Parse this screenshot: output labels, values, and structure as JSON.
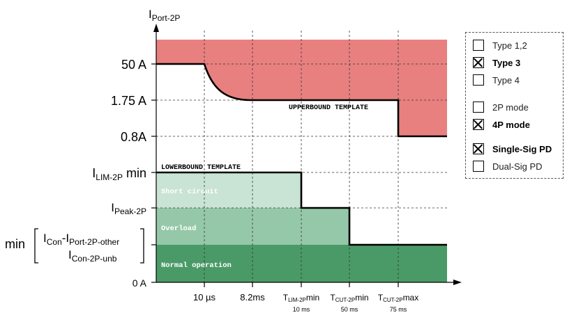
{
  "colors": {
    "upper_region": "#e88080",
    "short_circuit": "#c9e3d4",
    "overload": "#95c8a8",
    "normal": "#4a9a68",
    "line": "#000000"
  },
  "diagram": {
    "y_axis_label": {
      "base": "I",
      "sub": "Port-2P"
    },
    "y_labels": {
      "a50": "50 A",
      "a175": "1.75 A",
      "a08": "0.8A",
      "ilim": {
        "base": "I",
        "sub": "LIM-2P",
        "suffix": " min"
      },
      "ipeak": {
        "base": "I",
        "sub": "Peak-2P"
      },
      "min_word": "min",
      "icon": {
        "base": "I",
        "sub": "Con"
      },
      "dash": "-",
      "iport": {
        "base": "I",
        "sub": "Port-2P-other"
      },
      "iconunb": {
        "base": "I",
        "sub": "Con-2P-unb"
      },
      "zero": "0 A"
    },
    "x_labels": {
      "t10us": "10 µs",
      "t82ms": "8.2ms",
      "tlim": {
        "base": "T",
        "sub": "LIM-2P",
        "suffix": "min",
        "value": "10 ms"
      },
      "tcutmin": {
        "base": "T",
        "sub": "CUT-2P",
        "suffix": "min",
        "value": "50 ms"
      },
      "tcutmax": {
        "base": "T",
        "sub": "CUT-2P",
        "suffix": "max",
        "value": "75 ms"
      }
    },
    "templates": {
      "upper": "UPPERBOUND TEMPLATE",
      "lower": "LOWERBOUND TEMPLATE"
    },
    "regions": {
      "short_circuit": "Short circuit",
      "overload": "Overload",
      "normal": "Normal operation"
    }
  },
  "legend": [
    {
      "label": "Type 1,2",
      "checked": false,
      "bold": false
    },
    {
      "label": "Type 3",
      "checked": true,
      "bold": true
    },
    {
      "label": "Type 4",
      "checked": false,
      "bold": false
    },
    {
      "label": "2P mode",
      "checked": false,
      "bold": false
    },
    {
      "label": "4P mode",
      "checked": true,
      "bold": true
    },
    {
      "label": "Single-Sig PD",
      "checked": true,
      "bold": true
    },
    {
      "label": "Dual-Sig PD",
      "checked": false,
      "bold": false
    }
  ]
}
